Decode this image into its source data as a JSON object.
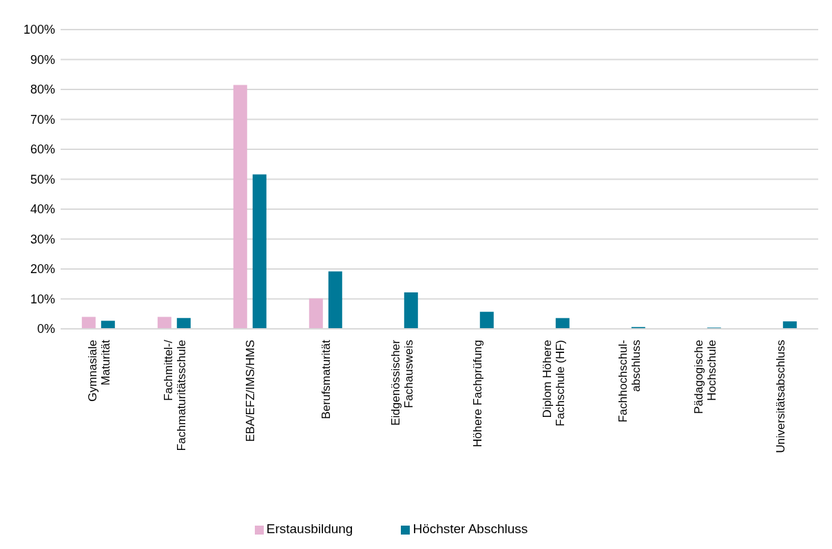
{
  "chart_data": {
    "type": "bar",
    "categories": [
      "Gymnasiale\nMaturität",
      "Fachmittel-/\nFachmaturitätsschule",
      "EBA/EFZ/IMS/HMS",
      "Berufsmaturität",
      "Eidgenössischer\nFachausweis",
      "Höhere Fachprüfung",
      "Diplom Höhere\nFachschule (HF)",
      "Fachhochschul-\nabschluss",
      "Pädagogische\nHochschule",
      "Universitätsabschluss"
    ],
    "series": [
      {
        "name": "Erstausbildung",
        "color": "#e6b2d2",
        "values": [
          4.0,
          4.0,
          81.5,
          10.2,
          0,
          0,
          0,
          0,
          0,
          0
        ]
      },
      {
        "name": "Höchster Abschluss",
        "color": "#007998",
        "values": [
          2.7,
          3.6,
          51.6,
          19.2,
          12.2,
          5.7,
          3.6,
          0.6,
          0.4,
          2.5
        ]
      }
    ],
    "ylim": [
      0,
      100
    ],
    "yticks": [
      {
        "value": 0,
        "label": "0%"
      },
      {
        "value": 10,
        "label": "10%"
      },
      {
        "value": 20,
        "label": "20%"
      },
      {
        "value": 30,
        "label": "30%"
      },
      {
        "value": 40,
        "label": "40%"
      },
      {
        "value": 50,
        "label": "50%"
      },
      {
        "value": 60,
        "label": "60%"
      },
      {
        "value": 70,
        "label": "70%"
      },
      {
        "value": 80,
        "label": "80%"
      },
      {
        "value": 90,
        "label": "90%"
      },
      {
        "value": 100,
        "label": "100%"
      }
    ],
    "grid": "y",
    "legend": "bottom"
  }
}
